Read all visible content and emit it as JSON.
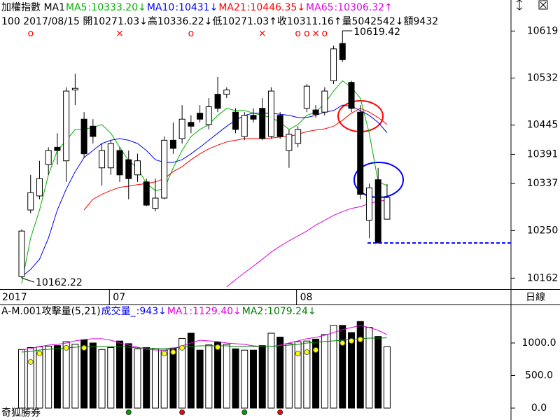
{
  "header": {
    "line2": "100 2017/08/15 開10271.03↓高10336.22↓低10271.03↑收10311.16↑量5042542↓額9432",
    "period": "日線",
    "brand": "奇狐勝券"
  },
  "chart_data": [
    {
      "type": "candlestick",
      "title": "加權指數 MA1",
      "categories": [
        "2017",
        null,
        null,
        null,
        null,
        null,
        null,
        null,
        null,
        null,
        "07",
        null,
        null,
        null,
        null,
        null,
        null,
        null,
        null,
        null,
        null,
        null,
        null,
        null,
        null,
        null,
        null,
        null,
        null,
        null,
        null,
        "08",
        null,
        null,
        null,
        null,
        null,
        null,
        null,
        null,
        null,
        null
      ],
      "open": [
        10165,
        10288,
        10314,
        10372,
        10404,
        10379,
        10510,
        10456,
        10443,
        10366,
        10366,
        10398,
        10381,
        10353,
        10340,
        10291,
        10310,
        10417,
        10420,
        10450,
        10467,
        10446,
        10502,
        10502,
        10469,
        10424,
        10463,
        10476,
        10424,
        10463,
        10398,
        10411,
        10476,
        10473,
        10469,
        10527,
        10596,
        10524,
        10469,
        10269,
        10344,
        10271.03
      ],
      "high": [
        10252,
        10353,
        10379,
        10404,
        10430,
        10515,
        10540,
        10469,
        10456,
        10411,
        10417,
        10404,
        10398,
        10392,
        10346,
        10346,
        10424,
        10450,
        10482,
        10463,
        10482,
        10495,
        10534,
        10515,
        10476,
        10469,
        10476,
        10495,
        10515,
        10469,
        10437,
        10443,
        10521,
        10482,
        10515,
        10592,
        10619.42,
        10527,
        10482,
        10337,
        10366,
        10336.22
      ],
      "low": [
        10162.22,
        10282,
        10308,
        10353,
        10372,
        10340,
        10482,
        10385,
        10411,
        10333,
        10353,
        10340,
        10308,
        10340,
        10295,
        10286,
        10308,
        10392,
        10411,
        10430,
        10450,
        10437,
        10469,
        10495,
        10430,
        10417,
        10450,
        10417,
        10420,
        10420,
        10366,
        10404,
        10469,
        10459,
        10463,
        10521,
        10562,
        10469,
        10308,
        10236,
        10227,
        10271.03
      ],
      "close": [
        10249,
        10320,
        10346,
        10398,
        10398,
        10508,
        10513,
        10392,
        10424,
        10398,
        10411,
        10353,
        10346,
        10379,
        10297,
        10310,
        10417,
        10402,
        10456,
        10443,
        10456,
        10479,
        10476,
        10510,
        10437,
        10463,
        10456,
        10420,
        10508,
        10424,
        10428,
        10437,
        10517,
        10465,
        10508,
        10586,
        10566,
        10476,
        10317,
        10329,
        10227,
        10311.16
      ],
      "up_color": "#ffffff",
      "down_color": "#000000",
      "series": [
        {
          "name": "MA5",
          "readout": ":10333.20↓",
          "color": "#00b000",
          "values": [
            10152,
            10236,
            10288,
            10353,
            10398,
            10417,
            10437,
            10437,
            10441,
            10446,
            10430,
            10404,
            10379,
            10366,
            10337,
            10324,
            10327,
            10366,
            10398,
            10424,
            10437,
            10446,
            10463,
            10476,
            10472,
            10472,
            10467,
            10463,
            10459,
            10450,
            10437,
            10446,
            10463,
            10469,
            10485,
            10508,
            10527,
            10515,
            10495,
            10430,
            10340,
            10333.2
          ]
        },
        {
          "name": "MA10",
          "readout": ":10431↓",
          "color": "#0000ff",
          "values": [
            10165,
            10178,
            10197,
            10236,
            10288,
            10327,
            10359,
            10385,
            10398,
            10411,
            10417,
            10420,
            10417,
            10411,
            10398,
            10381,
            10376,
            10376,
            10381,
            10392,
            10404,
            10417,
            10430,
            10443,
            10454,
            10463,
            10467,
            10467,
            10467,
            10465,
            10463,
            10459,
            10459,
            10463,
            10469,
            10472,
            10482,
            10480,
            10472,
            10463,
            10450,
            10431
          ]
        },
        {
          "name": "MA21",
          "readout": ":10446.35↓",
          "color": "#ff0000",
          "values": [
            null,
            null,
            null,
            null,
            null,
            null,
            null,
            10288,
            10308,
            10317,
            10324,
            10330,
            10332,
            10335,
            10337,
            10340,
            10346,
            10359,
            10368,
            10381,
            10392,
            10401,
            10408,
            10414,
            10417,
            10420,
            10420,
            10420,
            10421,
            10423,
            10424,
            10428,
            10433,
            10436,
            10438,
            10443,
            10454,
            10467,
            10476,
            10469,
            10459,
            10446.35
          ]
        },
        {
          "name": "MA65",
          "readout": ":10306.32↑",
          "color": "#e000e0",
          "values": [
            null,
            null,
            null,
            null,
            null,
            null,
            null,
            null,
            null,
            null,
            null,
            null,
            null,
            null,
            null,
            null,
            null,
            null,
            null,
            null,
            null,
            null,
            null,
            10146,
            10159,
            10172,
            10184,
            10197,
            10210,
            10221,
            10231,
            10240,
            10249,
            10260,
            10269,
            10278,
            10285,
            10291,
            10294,
            10300,
            10304,
            10306.32
          ]
        }
      ],
      "ylim": [
        10141.7,
        10676.4
      ],
      "yticks": [
        10162,
        10250,
        10337,
        10391,
        10445,
        10532,
        10619
      ],
      "grid": false,
      "signals": [
        null,
        "o",
        null,
        null,
        null,
        null,
        null,
        null,
        null,
        null,
        null,
        "×",
        null,
        null,
        null,
        null,
        null,
        null,
        null,
        "o",
        null,
        null,
        null,
        null,
        null,
        null,
        null,
        "×",
        null,
        null,
        null,
        "o",
        "o",
        "×",
        "o",
        null,
        null,
        null,
        null,
        null,
        null,
        null
      ],
      "signal_color": "#ff0000",
      "max_label": "10619.42",
      "min_label": "10162.22",
      "support": {
        "value": 10227,
        "color": "#0000ff"
      }
    },
    {
      "type": "bar",
      "title": "A-M.001攻擊量(5,21)",
      "name": "成交量_",
      "readout": ":943↓",
      "color": "#0000ff",
      "values": [
        900,
        930,
        940,
        950,
        960,
        1020,
        980,
        1050,
        1000,
        900,
        930,
        1030,
        990,
        910,
        930,
        910,
        890,
        920,
        1070,
        1150,
        890,
        970,
        1010,
        980,
        910,
        890,
        890,
        960,
        1150,
        1090,
        990,
        1020,
        1030,
        1060,
        1130,
        1270,
        1270,
        1160,
        1330,
        1240,
        1100,
        943
      ],
      "series": [
        {
          "name": "MA1",
          "readout": ":1129.40↓",
          "color": "#e000e0",
          "values": [
            892,
            914,
            946,
            968,
            978,
            1000,
            1032,
            1054,
            1065,
            1065,
            1043,
            1000,
            968,
            935,
            903,
            892,
            892,
            914,
            957,
            1000,
            1043,
            1032,
            1022,
            1000,
            989,
            978,
            957,
            946,
            946,
            968,
            1000,
            1032,
            1065,
            1086,
            1118,
            1161,
            1204,
            1237,
            1269,
            1237,
            1194,
            1129.4
          ]
        },
        {
          "name": "MA2",
          "readout": ":1079.24↓",
          "color": "#008000",
          "values": [
            860,
            871,
            892,
            903,
            914,
            925,
            935,
            946,
            946,
            946,
            946,
            946,
            935,
            925,
            925,
            914,
            914,
            925,
            935,
            946,
            957,
            957,
            957,
            957,
            946,
            946,
            946,
            946,
            946,
            957,
            968,
            978,
            1000,
            1011,
            1022,
            1032,
            1043,
            1054,
            1065,
            1075,
            1075,
            1079.24
          ]
        }
      ],
      "dots": [
        null,
        710,
        839,
        null,
        null,
        925,
        null,
        925,
        null,
        null,
        null,
        null,
        null,
        null,
        null,
        null,
        839,
        860,
        925,
        null,
        null,
        null,
        935,
        null,
        null,
        null,
        null,
        null,
        null,
        null,
        null,
        839,
        860,
        892,
        null,
        null,
        1000,
        1032,
        1054,
        null,
        null,
        null
      ],
      "dot_color": "#ffff00",
      "signal_dots": [
        null,
        null,
        null,
        null,
        null,
        null,
        null,
        null,
        null,
        null,
        null,
        null,
        "#00a000",
        null,
        null,
        null,
        null,
        null,
        "#ff0000",
        null,
        null,
        null,
        null,
        null,
        null,
        "#00a000",
        null,
        null,
        null,
        "#ff0000",
        null,
        null,
        null,
        null,
        null,
        null,
        null,
        null,
        null,
        null,
        null,
        null
      ],
      "ylim": [
        0,
        1376
      ],
      "yticks": [
        {
          "value": 0,
          "label": "0.0"
        },
        {
          "value": 500,
          "label": "500.0"
        },
        {
          "value": 1000,
          "label": "1000.0"
        }
      ],
      "grid": false
    }
  ]
}
